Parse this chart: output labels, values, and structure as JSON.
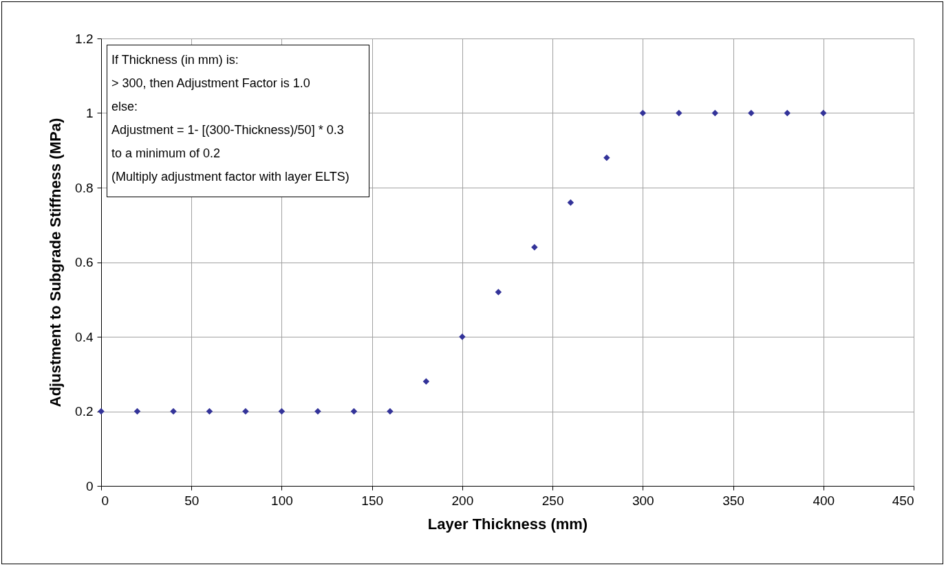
{
  "chart_data": {
    "type": "scatter",
    "xlabel": "Layer Thickness (mm)",
    "ylabel": "Adjustment to Subgrade Stiffness (MPa)",
    "x": [
      0,
      20,
      40,
      60,
      80,
      100,
      120,
      140,
      160,
      180,
      200,
      220,
      240,
      260,
      280,
      300,
      320,
      340,
      360,
      380,
      400
    ],
    "series": [
      {
        "color": "#333399",
        "values": [
          0.2,
          0.2,
          0.2,
          0.2,
          0.2,
          0.2,
          0.2,
          0.2,
          0.2,
          0.28,
          0.4,
          0.52,
          0.64,
          0.76,
          0.88,
          1.0,
          1.0,
          1.0,
          1.0,
          1.0,
          1.0
        ]
      }
    ],
    "xlim": [
      0,
      450
    ],
    "xticks": [
      0,
      50,
      100,
      150,
      200,
      250,
      300,
      350,
      400,
      450
    ],
    "ylim": [
      0,
      1.2
    ],
    "yticks": [
      {
        "value": 0,
        "label": "0"
      },
      0.2,
      0.4,
      0.6,
      0.8,
      {
        "value": 1,
        "label": "1"
      },
      1.2
    ],
    "grid": true,
    "marker": "diamond",
    "annotations": [
      "If Thickness (in mm) is:",
      "> 300, then Adjustment Factor is 1.0",
      "else:",
      "Adjustment = 1- [(300-Thickness)/50] * 0.3",
      "to a minimum of 0.2",
      "(Multiply adjustment factor with layer ELTS)"
    ]
  }
}
